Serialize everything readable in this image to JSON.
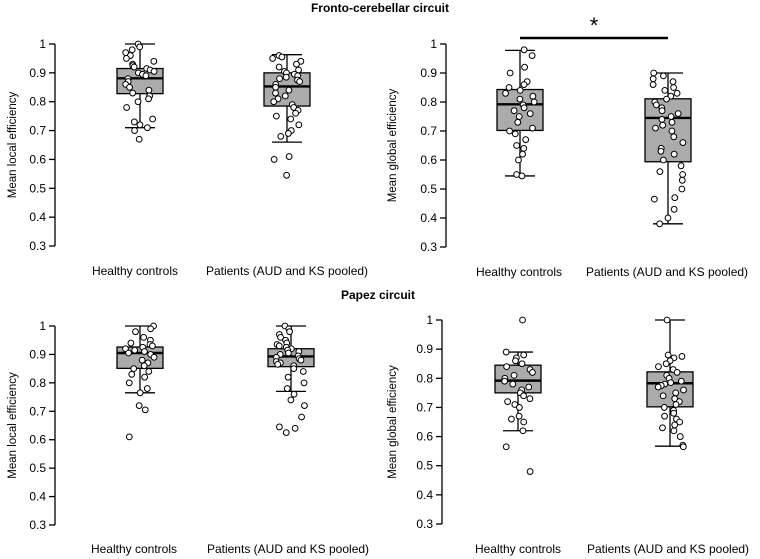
{
  "sections": [
    {
      "title": "Fronto-cerebellar circuit"
    },
    {
      "title": "Papez circuit"
    }
  ],
  "colors": {
    "box_fill": "#ababab",
    "stroke": "#000000",
    "background": "#ffffff"
  },
  "chart_data": [
    {
      "type": "box",
      "section": "Fronto-cerebellar circuit",
      "ylabel": "Mean local efficiency",
      "ylim": [
        0.3,
        1.0
      ],
      "yticks": [
        "0.3",
        "0.4",
        "0.5",
        "0.6",
        "0.7",
        "0.8",
        "0.9",
        "1"
      ],
      "categories": [
        "Healthy controls",
        "Patients (AUD and KS pooled)"
      ],
      "boxes": [
        {
          "whisker_low": 0.71,
          "q1": 0.828,
          "median": 0.881,
          "q3": 0.915,
          "whisker_high": 1.0,
          "points": [
            1.0,
            0.99,
            0.98,
            0.97,
            0.96,
            0.95,
            0.94,
            0.93,
            0.925,
            0.92,
            0.915,
            0.91,
            0.905,
            0.9,
            0.895,
            0.89,
            0.88,
            0.87,
            0.86,
            0.85,
            0.84,
            0.83,
            0.82,
            0.81,
            0.8,
            0.78,
            0.74,
            0.73,
            0.72,
            0.71,
            0.7,
            0.67
          ]
        },
        {
          "whisker_low": 0.66,
          "q1": 0.785,
          "median": 0.853,
          "q3": 0.9,
          "whisker_high": 0.963,
          "points": [
            0.96,
            0.955,
            0.95,
            0.94,
            0.93,
            0.92,
            0.91,
            0.905,
            0.9,
            0.895,
            0.89,
            0.885,
            0.88,
            0.875,
            0.87,
            0.86,
            0.85,
            0.84,
            0.83,
            0.82,
            0.81,
            0.8,
            0.79,
            0.78,
            0.77,
            0.76,
            0.75,
            0.74,
            0.72,
            0.7,
            0.69,
            0.68,
            0.61,
            0.6,
            0.545
          ]
        }
      ]
    },
    {
      "type": "box",
      "section": "Fronto-cerebellar circuit",
      "ylabel": "Mean global efficiency",
      "ylim": [
        0.3,
        1.0
      ],
      "yticks": [
        "0.3",
        "0.4",
        "0.5",
        "0.6",
        "0.7",
        "0.8",
        "0.9",
        "1"
      ],
      "categories": [
        "Healthy controls",
        "Patients (AUD and KS pooled)"
      ],
      "significance": {
        "label": "*",
        "between": [
          0,
          1
        ]
      },
      "boxes": [
        {
          "whisker_low": 0.545,
          "q1": 0.702,
          "median": 0.792,
          "q3": 0.843,
          "whisker_high": 0.978,
          "points": [
            0.98,
            0.96,
            0.92,
            0.9,
            0.87,
            0.86,
            0.85,
            0.84,
            0.83,
            0.82,
            0.81,
            0.8,
            0.79,
            0.78,
            0.77,
            0.76,
            0.75,
            0.73,
            0.71,
            0.7,
            0.69,
            0.67,
            0.65,
            0.64,
            0.62,
            0.6,
            0.55,
            0.545
          ]
        },
        {
          "whisker_low": 0.38,
          "q1": 0.594,
          "median": 0.745,
          "q3": 0.811,
          "whisker_high": 0.9,
          "points": [
            0.9,
            0.89,
            0.88,
            0.87,
            0.86,
            0.85,
            0.84,
            0.83,
            0.82,
            0.81,
            0.8,
            0.79,
            0.78,
            0.77,
            0.76,
            0.75,
            0.74,
            0.73,
            0.72,
            0.71,
            0.7,
            0.68,
            0.66,
            0.64,
            0.63,
            0.62,
            0.6,
            0.58,
            0.56,
            0.55,
            0.53,
            0.5,
            0.47,
            0.465,
            0.43,
            0.4,
            0.38
          ]
        }
      ]
    },
    {
      "type": "box",
      "section": "Papez circuit",
      "ylabel": "Mean local efficiency",
      "ylim": [
        0.3,
        1.0
      ],
      "yticks": [
        "0.3",
        "0.4",
        "0.5",
        "0.6",
        "0.7",
        "0.8",
        "0.9",
        "1"
      ],
      "categories": [
        "Healthy controls",
        "Patients (AUD and KS pooled)"
      ],
      "boxes": [
        {
          "whisker_low": 0.765,
          "q1": 0.851,
          "median": 0.905,
          "q3": 0.926,
          "whisker_high": 1.0,
          "points": [
            1.0,
            0.99,
            0.98,
            0.96,
            0.95,
            0.94,
            0.935,
            0.93,
            0.925,
            0.92,
            0.915,
            0.91,
            0.905,
            0.9,
            0.89,
            0.88,
            0.87,
            0.86,
            0.85,
            0.84,
            0.83,
            0.82,
            0.8,
            0.78,
            0.765,
            0.72,
            0.705,
            0.61
          ]
        },
        {
          "whisker_low": 0.77,
          "q1": 0.857,
          "median": 0.893,
          "q3": 0.92,
          "whisker_high": 1.0,
          "points": [
            1.0,
            0.99,
            0.98,
            0.97,
            0.96,
            0.95,
            0.94,
            0.935,
            0.93,
            0.925,
            0.92,
            0.915,
            0.91,
            0.905,
            0.9,
            0.895,
            0.89,
            0.885,
            0.88,
            0.875,
            0.87,
            0.865,
            0.86,
            0.85,
            0.84,
            0.82,
            0.8,
            0.78,
            0.76,
            0.74,
            0.72,
            0.68,
            0.645,
            0.64,
            0.625
          ]
        }
      ]
    },
    {
      "type": "box",
      "section": "Papez circuit",
      "ylabel": "Mean global efficiency",
      "ylim": [
        0.3,
        1.0
      ],
      "yticks": [
        "0.3",
        "0.4",
        "0.5",
        "0.6",
        "0.7",
        "0.8",
        "0.9",
        "1"
      ],
      "categories": [
        "Healthy controls",
        "Patients (AUD and KS pooled)"
      ],
      "boxes": [
        {
          "whisker_low": 0.62,
          "q1": 0.75,
          "median": 0.792,
          "q3": 0.845,
          "whisker_high": 0.89,
          "points": [
            1.0,
            0.89,
            0.88,
            0.87,
            0.86,
            0.85,
            0.84,
            0.83,
            0.82,
            0.81,
            0.8,
            0.79,
            0.78,
            0.77,
            0.76,
            0.75,
            0.74,
            0.73,
            0.72,
            0.71,
            0.7,
            0.67,
            0.66,
            0.65,
            0.62,
            0.565,
            0.48
          ]
        },
        {
          "whisker_low": 0.567,
          "q1": 0.702,
          "median": 0.783,
          "q3": 0.822,
          "whisker_high": 1.0,
          "points": [
            1.0,
            0.88,
            0.875,
            0.87,
            0.86,
            0.85,
            0.84,
            0.83,
            0.82,
            0.81,
            0.8,
            0.79,
            0.785,
            0.78,
            0.775,
            0.77,
            0.76,
            0.75,
            0.74,
            0.73,
            0.72,
            0.71,
            0.7,
            0.69,
            0.68,
            0.67,
            0.66,
            0.65,
            0.64,
            0.63,
            0.62,
            0.6,
            0.57,
            0.565
          ]
        }
      ]
    }
  ]
}
